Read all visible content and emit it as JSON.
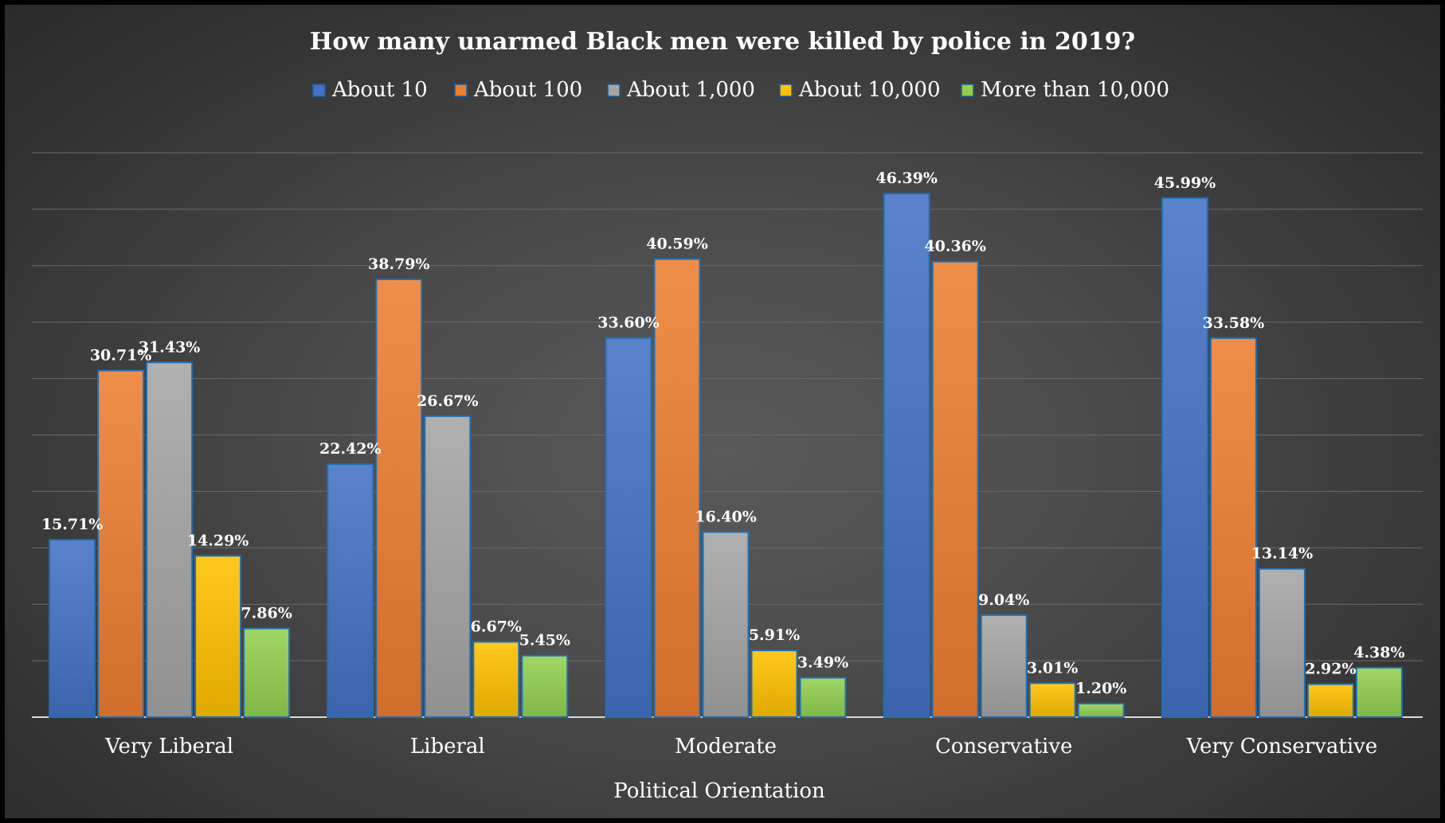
{
  "chart_data": {
    "type": "bar",
    "title": "How many unarmed Black men were killed by police in 2019?",
    "xlabel": "Political Orientation",
    "ylabel": "",
    "ylim": [
      0,
      50
    ],
    "grid": true,
    "legend_position": "top",
    "categories": [
      "Very Liberal",
      "Liberal",
      "Moderate",
      "Conservative",
      "Very Conservative"
    ],
    "series": [
      {
        "name": "About 10",
        "color": "#4472C4",
        "values": [
          15.71,
          22.42,
          33.6,
          46.39,
          45.99
        ],
        "labels": [
          "15.71%",
          "22.42%",
          "33.60%",
          "46.39%",
          "45.99%"
        ]
      },
      {
        "name": "About 100",
        "color": "#ED7D31",
        "values": [
          30.71,
          38.79,
          40.59,
          40.36,
          33.58
        ],
        "labels": [
          "30.71%",
          "38.79%",
          "40.59%",
          "40.36%",
          "33.58%"
        ]
      },
      {
        "name": "About 1,000",
        "color": "#A5A5A5",
        "values": [
          31.43,
          26.67,
          16.4,
          9.04,
          13.14
        ],
        "labels": [
          "31.43%",
          "26.67%",
          "16.40%",
          "9.04%",
          "13.14%"
        ]
      },
      {
        "name": "About 10,000",
        "color": "#FFC000",
        "values": [
          14.29,
          6.67,
          5.91,
          3.01,
          2.92
        ],
        "labels": [
          "14.29%",
          "6.67%",
          "5.91%",
          "3.01%",
          "2.92%"
        ]
      },
      {
        "name": "More than 10,000",
        "color": "#92D050",
        "values": [
          7.86,
          5.45,
          3.49,
          1.2,
          4.38
        ],
        "labels": [
          "7.86%",
          "5.45%",
          "3.49%",
          "1.20%",
          "4.38%"
        ]
      }
    ]
  }
}
